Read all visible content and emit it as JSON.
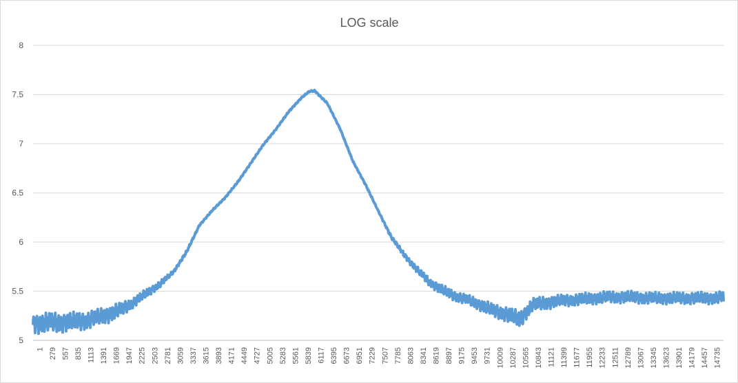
{
  "chart_data": {
    "type": "line",
    "title": "LOG scale",
    "xlabel": "",
    "ylabel": "",
    "x_range": [
      1,
      15000
    ],
    "ylim": [
      5,
      8
    ],
    "y_ticks": [
      5,
      5.5,
      6,
      6.5,
      7,
      7.5,
      8
    ],
    "x_tick_labels": [
      "1",
      "279",
      "557",
      "835",
      "1113",
      "1391",
      "1669",
      "1947",
      "2225",
      "2503",
      "2781",
      "3059",
      "3337",
      "3615",
      "3893",
      "4171",
      "4449",
      "4727",
      "5005",
      "5283",
      "5561",
      "5839",
      "6117",
      "6395",
      "6673",
      "6951",
      "7229",
      "7507",
      "7785",
      "8063",
      "8341",
      "8619",
      "8897",
      "9175",
      "9453",
      "9731",
      "10009",
      "10287",
      "10565",
      "10843",
      "11121",
      "11399",
      "11677",
      "11955",
      "12233",
      "12511",
      "12789",
      "13067",
      "13345",
      "13623",
      "13901",
      "14179",
      "14457",
      "14735"
    ],
    "grid": true,
    "legend": "none",
    "color": "#5b9bd5",
    "series": [
      {
        "x": [
          1,
          278,
          556,
          834,
          1112,
          1390,
          1668,
          1946,
          2224,
          2502,
          2780,
          3058,
          3336,
          3614,
          3892,
          4170,
          4448,
          4726,
          5004,
          5282,
          5560,
          5838,
          6000,
          6116,
          6394,
          6672,
          6950,
          7228,
          7506,
          7784,
          8062,
          8340,
          8618,
          8896,
          9174,
          9452,
          9730,
          10008,
          10286,
          10564,
          10700,
          10842,
          11120,
          11398,
          11676,
          11954,
          12232,
          12510,
          12788,
          13066,
          13344,
          13622,
          13900,
          14178,
          14456,
          14734,
          15000
        ],
        "y": [
          5.17,
          5.18,
          5.18,
          5.19,
          5.2,
          5.23,
          5.27,
          5.32,
          5.4,
          5.49,
          5.58,
          5.7,
          5.9,
          6.17,
          6.32,
          6.45,
          6.61,
          6.8,
          6.99,
          7.15,
          7.33,
          7.47,
          7.53,
          7.54,
          7.41,
          7.15,
          6.82,
          6.58,
          6.31,
          6.05,
          5.87,
          5.72,
          5.59,
          5.51,
          5.45,
          5.41,
          5.36,
          5.3,
          5.27,
          5.21,
          5.28,
          5.36,
          5.38,
          5.4,
          5.41,
          5.42,
          5.43,
          5.44,
          5.44,
          5.44,
          5.43,
          5.43,
          5.43,
          5.43,
          5.43,
          5.43,
          5.44
        ],
        "band": [
          0.12,
          0.12,
          0.12,
          0.11,
          0.11,
          0.1,
          0.1,
          0.08,
          0.06,
          0.05,
          0.04,
          0.02,
          0.02,
          0.01,
          0.01,
          0.01,
          0.01,
          0.01,
          0.01,
          0.01,
          0.01,
          0.01,
          0.01,
          0.01,
          0.01,
          0.01,
          0.01,
          0.01,
          0.01,
          0.02,
          0.03,
          0.04,
          0.05,
          0.06,
          0.06,
          0.06,
          0.07,
          0.08,
          0.09,
          0.1,
          0.09,
          0.08,
          0.08,
          0.07,
          0.07,
          0.07,
          0.07,
          0.07,
          0.07,
          0.07,
          0.07,
          0.07,
          0.07,
          0.07,
          0.07,
          0.07,
          0.07
        ]
      }
    ]
  }
}
